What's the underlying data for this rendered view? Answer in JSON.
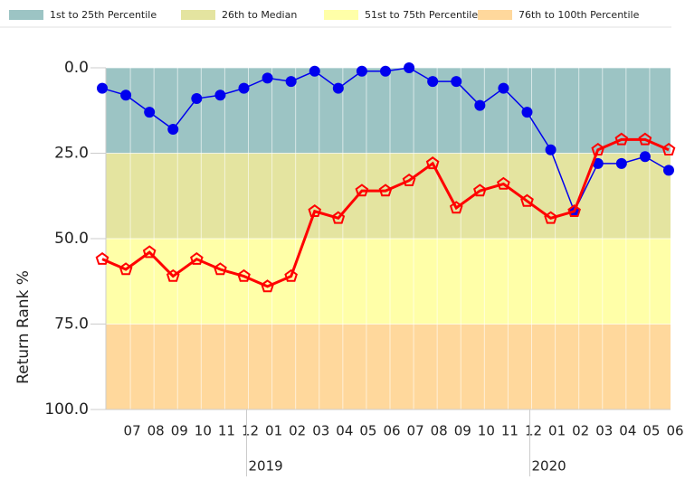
{
  "chart_data": {
    "type": "line",
    "y_label": "Return Rank %",
    "ylim": [
      0,
      100
    ],
    "y_inverted": true,
    "yticks": [
      {
        "value": 0,
        "label": "0.0"
      },
      {
        "value": 25,
        "label": "25.0"
      },
      {
        "value": 50,
        "label": "50.0"
      },
      {
        "value": 75,
        "label": "75.0"
      },
      {
        "value": 100,
        "label": "100.0"
      }
    ],
    "categories": [
      null,
      "07",
      "08",
      "09",
      "10",
      "11",
      "12",
      "01",
      "02",
      "03",
      "04",
      "05",
      "06",
      "07",
      "08",
      "09",
      "10",
      "11",
      "12",
      "01",
      "02",
      "03",
      "04",
      "05",
      "06"
    ],
    "year_labels": [
      {
        "label": "2019",
        "at": 7
      },
      {
        "label": "2020",
        "at": 19
      }
    ],
    "bands": [
      {
        "label": "1st to 25th Percentile",
        "color": "#9cc4c4",
        "range": [
          0,
          25
        ]
      },
      {
        "label": "26th to Median",
        "color": "#e4e4a0",
        "range": [
          25,
          50
        ]
      },
      {
        "label": "51st to 75th Percentile",
        "color": "#ffffa8",
        "range": [
          50,
          75
        ]
      },
      {
        "label": "76th to 100th Percentile",
        "color": "#ffd89c",
        "range": [
          75,
          100
        ]
      }
    ],
    "series": [
      {
        "color": "#0000ee",
        "marker": "circle",
        "values": [
          6,
          8,
          13,
          18,
          9,
          8,
          6,
          3,
          4,
          1,
          6,
          1,
          1,
          0,
          4,
          4,
          11,
          6,
          13,
          24,
          42,
          28,
          28,
          26,
          30
        ]
      },
      {
        "color": "#ff0000",
        "marker": "pentagon",
        "values": [
          56,
          59,
          54,
          61,
          56,
          59,
          61,
          64,
          61,
          42,
          44,
          36,
          36,
          33,
          28,
          41,
          36,
          34,
          39,
          44,
          42,
          24,
          21,
          21,
          24
        ]
      }
    ]
  }
}
